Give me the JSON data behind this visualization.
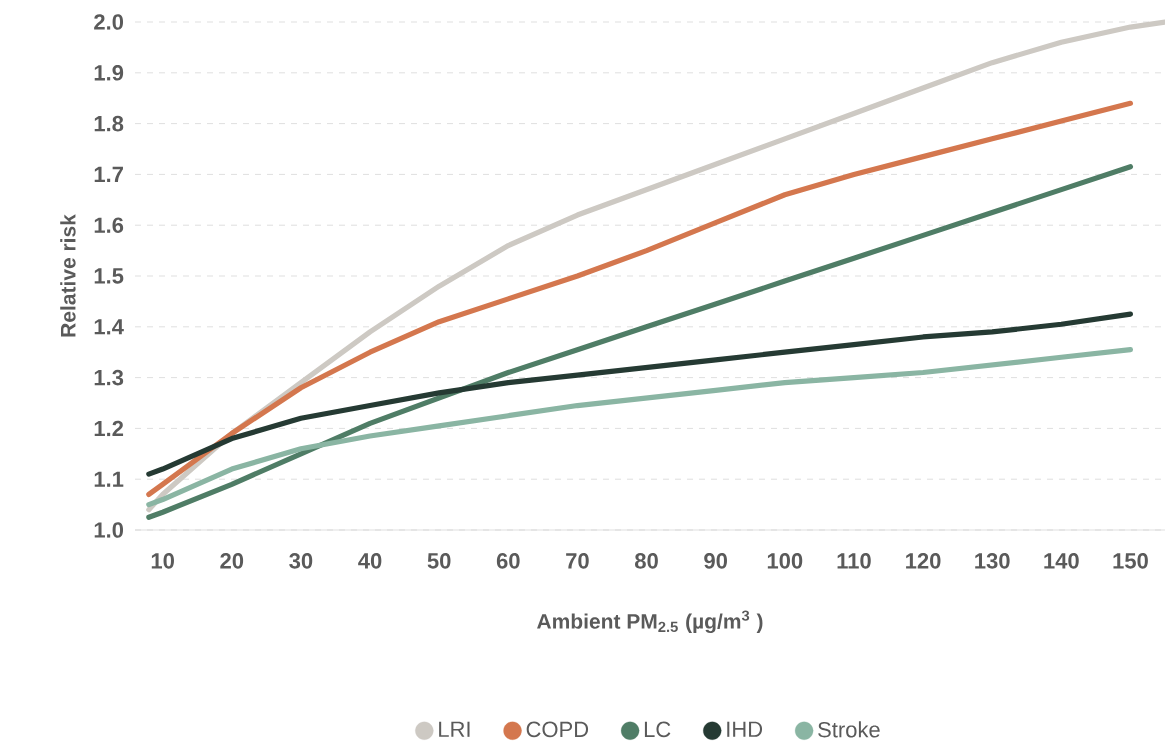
{
  "chart_data": {
    "type": "line",
    "xlabel": "Ambient PM$_{2.5}$ (µg/m$^{3}$ )",
    "ylabel": "Relative risk",
    "x": [
      8,
      10,
      20,
      30,
      40,
      50,
      60,
      70,
      80,
      90,
      100,
      110,
      120,
      130,
      140,
      150
    ],
    "series": [
      {
        "name": "LRI",
        "color": "#cdc9c3",
        "x": [
          8,
          10,
          20,
          30,
          40,
          50,
          60,
          70,
          80,
          90,
          100,
          110,
          120,
          130,
          140,
          150,
          155
        ],
        "values": [
          1.04,
          1.07,
          1.19,
          1.29,
          1.39,
          1.48,
          1.56,
          1.62,
          1.67,
          1.72,
          1.77,
          1.82,
          1.87,
          1.92,
          1.96,
          1.99,
          2.0
        ]
      },
      {
        "name": "COPD",
        "color": "#d4774e",
        "values": [
          1.07,
          1.09,
          1.19,
          1.28,
          1.35,
          1.41,
          1.455,
          1.5,
          1.55,
          1.605,
          1.66,
          1.7,
          1.735,
          1.77,
          1.805,
          1.84
        ]
      },
      {
        "name": "LC",
        "color": "#4f7d66",
        "values": [
          1.025,
          1.035,
          1.09,
          1.15,
          1.21,
          1.26,
          1.31,
          1.355,
          1.4,
          1.445,
          1.49,
          1.535,
          1.58,
          1.625,
          1.67,
          1.715
        ]
      },
      {
        "name": "IHD",
        "color": "#253a33",
        "values": [
          1.11,
          1.12,
          1.18,
          1.22,
          1.245,
          1.27,
          1.29,
          1.305,
          1.32,
          1.335,
          1.35,
          1.365,
          1.38,
          1.39,
          1.405,
          1.425
        ]
      },
      {
        "name": "Stroke",
        "color": "#8ab5a3",
        "values": [
          1.05,
          1.06,
          1.12,
          1.16,
          1.185,
          1.205,
          1.225,
          1.245,
          1.26,
          1.275,
          1.29,
          1.3,
          1.31,
          1.325,
          1.34,
          1.355
        ]
      }
    ],
    "xlim": [
      6,
      155
    ],
    "ylim": [
      1.0,
      2.0
    ],
    "xticks": [
      10,
      20,
      30,
      40,
      50,
      60,
      70,
      80,
      90,
      100,
      110,
      120,
      130,
      140,
      150
    ],
    "yticks": [
      {
        "value": 1.0,
        "label": "1.0"
      },
      1.1,
      1.2,
      1.3,
      1.4,
      1.5,
      1.6,
      1.7,
      1.8,
      1.9,
      {
        "value": 2.0,
        "label": "2.0"
      }
    ],
    "grid": "y",
    "legend": "bottom",
    "line_style": "solid"
  }
}
